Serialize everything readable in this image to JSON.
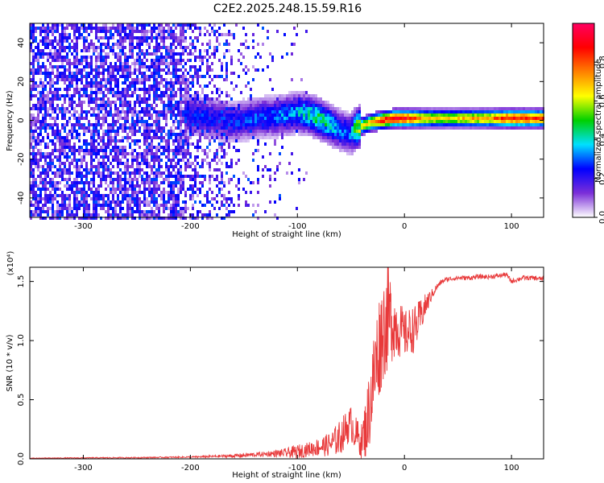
{
  "title": "C2E2.2025.248.15.59.R16",
  "chart_data": [
    {
      "type": "heatmap",
      "xlabel": "Height of straight line (km)",
      "ylabel": "Frequency (Hz)",
      "xlim": [
        -350,
        130
      ],
      "ylim": [
        -50,
        50
      ],
      "x_ticks": [
        -300,
        -200,
        -100,
        0,
        100
      ],
      "x_tick_labels": [
        "-300",
        "-200",
        "-100",
        "0",
        "100"
      ],
      "y_ticks": [
        -40,
        -20,
        0,
        20,
        40
      ],
      "y_tick_labels": [
        "-40",
        "-20",
        "0",
        "20",
        "40"
      ],
      "colorbar": {
        "label": "Normalized spectral amplitude",
        "range": [
          0,
          1
        ],
        "ticks": [
          0.0,
          0.2,
          0.4,
          0.6,
          0.8
        ],
        "tick_labels": [
          "0.0",
          "0.2",
          "0.4",
          "0.6",
          "0.8"
        ],
        "colormap": [
          "#ffffff",
          "#7b2fd8",
          "#0000ff",
          "#00e0ff",
          "#00d000",
          "#ffff00",
          "#ff8000",
          "#ff0000",
          "#ff0060"
        ]
      },
      "ridge": {
        "x": [
          -200,
          -180,
          -160,
          -140,
          -120,
          -100,
          -90,
          -80,
          -70,
          -60,
          -50,
          -45,
          -40,
          -30,
          -20,
          -10,
          0,
          20,
          40,
          60,
          80,
          100,
          130
        ],
        "freq": [
          3,
          1,
          -1,
          1,
          2,
          4,
          3,
          1,
          -2,
          -5,
          -7,
          -4,
          -3,
          -1,
          0,
          1,
          1,
          1,
          1,
          1,
          1,
          1,
          1
        ],
        "amplitude": [
          0.25,
          0.25,
          0.25,
          0.28,
          0.3,
          0.35,
          0.4,
          0.45,
          0.4,
          0.3,
          0.3,
          0.55,
          0.6,
          0.7,
          0.85,
          0.9,
          0.9,
          0.7,
          0.65,
          0.7,
          0.75,
          0.9,
          0.8
        ]
      }
    },
    {
      "type": "line",
      "xlabel": "Height of straight line (km)",
      "ylabel": "SNR (10 * v/v)",
      "y_multiplier": "(x10⁴)",
      "xlim": [
        -350,
        130
      ],
      "ylim": [
        0,
        1.62
      ],
      "x_ticks": [
        -300,
        -200,
        -100,
        0,
        100
      ],
      "x_tick_labels": [
        "-300",
        "-200",
        "-100",
        "0",
        "100"
      ],
      "y_ticks": [
        0,
        0.5,
        1.0,
        1.5
      ],
      "y_tick_labels": [
        "0.0",
        "0.5",
        "1.0",
        "1.5"
      ],
      "color": "#e8393a",
      "series": [
        {
          "x": [
            -350,
            -300,
            -250,
            -200,
            -180,
            -160,
            -150,
            -140,
            -130,
            -120,
            -110,
            -100,
            -90,
            -80,
            -70,
            -60,
            -55,
            -50,
            -45,
            -40,
            -35,
            -30,
            -25,
            -20,
            -15,
            -10,
            -5,
            0,
            5,
            10,
            15,
            20,
            25,
            30,
            35,
            40,
            50,
            60,
            70,
            80,
            90,
            95,
            100,
            110,
            120,
            130
          ],
          "y": [
            0.005,
            0.008,
            0.01,
            0.015,
            0.02,
            0.025,
            0.03,
            0.035,
            0.04,
            0.045,
            0.05,
            0.06,
            0.08,
            0.1,
            0.12,
            0.18,
            0.25,
            0.3,
            0.2,
            0.15,
            0.3,
            0.6,
            0.9,
            1.1,
            1.2,
            1.15,
            1.1,
            1.05,
            1.08,
            1.1,
            1.2,
            1.3,
            1.38,
            1.45,
            1.5,
            1.52,
            1.53,
            1.53,
            1.54,
            1.54,
            1.55,
            1.56,
            1.5,
            1.53,
            1.53,
            1.52
          ],
          "noise": [
            0.003,
            0.004,
            0.005,
            0.006,
            0.01,
            0.015,
            0.02,
            0.02,
            0.02,
            0.03,
            0.04,
            0.06,
            0.06,
            0.08,
            0.1,
            0.15,
            0.15,
            0.15,
            0.15,
            0.15,
            0.3,
            0.4,
            0.45,
            0.45,
            0.45,
            0.3,
            0.25,
            0.2,
            0.2,
            0.2,
            0.15,
            0.1,
            0.05,
            0.03,
            0.02,
            0.02,
            0.02,
            0.02,
            0.02,
            0.02,
            0.02,
            0.02,
            0.02,
            0.02,
            0.02,
            0.02
          ]
        }
      ]
    }
  ]
}
